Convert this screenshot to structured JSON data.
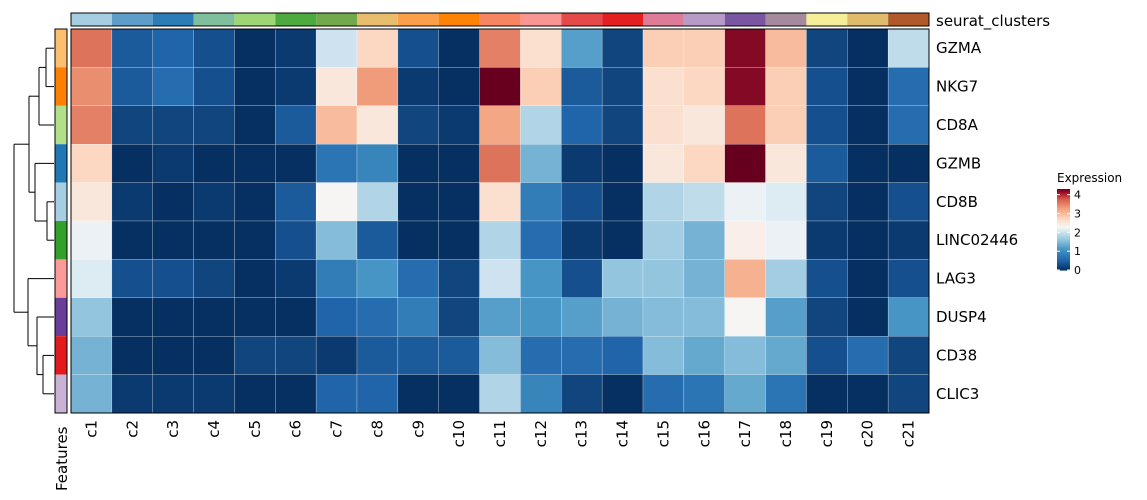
{
  "chart_data": {
    "type": "heatmap",
    "title": "",
    "columns": [
      "c1",
      "c2",
      "c3",
      "c4",
      "c5",
      "c6",
      "c7",
      "c8",
      "c9",
      "c10",
      "c11",
      "c12",
      "c13",
      "c14",
      "c15",
      "c16",
      "c17",
      "c18",
      "c19",
      "c20",
      "c21"
    ],
    "rows": [
      "GZMA",
      "NKG7",
      "CD8A",
      "GZMB",
      "CD8B",
      "LINC02446",
      "LAG3",
      "DUSP4",
      "CD38",
      "CLIC3"
    ],
    "values": [
      [
        3.6,
        0.4,
        0.5,
        0.3,
        0.0,
        0.1,
        2.0,
        2.7,
        0.3,
        0.0,
        3.5,
        2.6,
        1.2,
        0.2,
        2.8,
        2.8,
        4.2,
        3.0,
        0.2,
        0.0,
        1.9
      ],
      [
        3.4,
        0.4,
        0.6,
        0.3,
        0.0,
        0.1,
        2.5,
        3.3,
        0.1,
        0.0,
        4.3,
        2.8,
        0.4,
        0.2,
        2.6,
        2.7,
        4.2,
        2.8,
        0.3,
        0.0,
        0.6
      ],
      [
        3.5,
        0.2,
        0.2,
        0.2,
        0.0,
        0.4,
        3.0,
        2.5,
        0.2,
        0.1,
        3.2,
        1.8,
        0.5,
        0.2,
        2.6,
        2.5,
        3.6,
        2.8,
        0.3,
        0.0,
        0.6
      ],
      [
        2.7,
        0.0,
        0.1,
        0.0,
        0.0,
        0.0,
        0.7,
        0.9,
        0.0,
        0.0,
        3.6,
        1.4,
        0.1,
        0.0,
        2.5,
        2.7,
        4.3,
        2.5,
        0.4,
        0.0,
        0.0
      ],
      [
        2.5,
        0.1,
        0.0,
        0.1,
        0.0,
        0.4,
        2.3,
        1.8,
        0.0,
        0.0,
        2.6,
        0.8,
        0.3,
        0.0,
        1.8,
        1.9,
        2.2,
        2.1,
        0.2,
        0.0,
        0.3
      ],
      [
        2.2,
        0.0,
        0.0,
        0.0,
        0.0,
        0.3,
        1.5,
        0.4,
        0.0,
        0.0,
        1.8,
        0.6,
        0.1,
        0.0,
        1.7,
        1.4,
        2.4,
        2.2,
        0.1,
        0.0,
        0.1
      ],
      [
        2.1,
        0.3,
        0.3,
        0.2,
        0.0,
        0.1,
        0.8,
        1.1,
        0.6,
        0.2,
        2.0,
        1.1,
        0.3,
        1.6,
        1.6,
        1.4,
        3.1,
        1.7,
        0.3,
        0.0,
        0.3
      ],
      [
        1.6,
        0.0,
        0.0,
        0.0,
        0.0,
        0.0,
        0.5,
        0.6,
        0.8,
        0.2,
        1.2,
        1.1,
        1.2,
        1.4,
        1.5,
        1.5,
        2.3,
        1.2,
        0.2,
        0.0,
        1.1
      ],
      [
        1.4,
        0.0,
        0.0,
        0.0,
        0.2,
        0.2,
        0.1,
        0.4,
        0.4,
        0.4,
        1.5,
        0.6,
        0.6,
        0.5,
        1.5,
        1.3,
        1.5,
        1.3,
        0.3,
        0.6,
        0.2
      ],
      [
        1.4,
        0.1,
        0.1,
        0.1,
        0.0,
        0.0,
        0.5,
        0.5,
        0.0,
        0.0,
        1.8,
        0.9,
        0.2,
        0.0,
        0.6,
        0.7,
        1.3,
        0.7,
        0.0,
        0.0,
        0.2
      ]
    ],
    "row_label_order": "top-to-bottom",
    "column_annotation": {
      "name": "seurat_clusters",
      "colors": [
        "#a6cee3",
        "#5c9ec9",
        "#2c7cb7",
        "#7fbf9d",
        "#9ed675",
        "#4daa3e",
        "#72a94a",
        "#e8be6e",
        "#fc9f4a",
        "#fe8205",
        "#f88562",
        "#f99694",
        "#e54a4b",
        "#e41f22",
        "#dd7b98",
        "#b89ac7",
        "#7a55a1",
        "#a48a9c",
        "#f7ef97",
        "#e0bb6c",
        "#b15928"
      ]
    },
    "row_annotation": {
      "name": "Features",
      "colors": [
        "#fdbf6f",
        "#ff7f00",
        "#b2df8a",
        "#1f78b4",
        "#a6cee3",
        "#33a02c",
        "#fb9a99",
        "#6a3d9a",
        "#e31a1c",
        "#cab2d6"
      ]
    },
    "legend": {
      "title": "Expression",
      "ticks": [
        "0",
        "1",
        "2",
        "3",
        "4"
      ],
      "range": [
        0,
        4.3
      ],
      "position": "right"
    },
    "dendrogram": "rows"
  }
}
